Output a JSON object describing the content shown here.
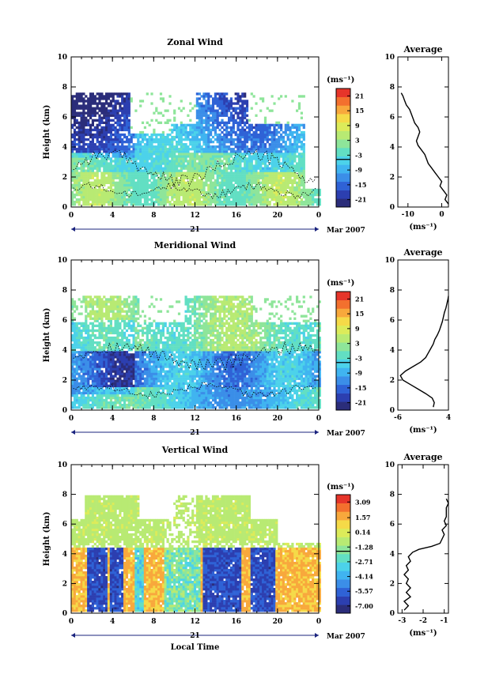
{
  "figure": {
    "date_label": "Mar 2007",
    "day_label": "21",
    "xlabel": "Local Time"
  },
  "colormap": [
    "#2b2d7a",
    "#2c3fb0",
    "#2f62d6",
    "#3b8ee8",
    "#40b4f0",
    "#4cd2ea",
    "#62dfc3",
    "#8ee59a",
    "#b8ea73",
    "#dceb5a",
    "#f5da48",
    "#f8a83c",
    "#f3702e",
    "#e6352a"
  ],
  "chart_data": [
    {
      "type": "heatmap",
      "title": "Zonal Wind",
      "xlabel": "",
      "ylabel": "Height (km)",
      "x_ticks": [
        "0",
        "4",
        "8",
        "12",
        "16",
        "20",
        "0"
      ],
      "xlim": [
        0,
        24
      ],
      "y_ticks": [
        "0",
        "2",
        "4",
        "6",
        "8",
        "10"
      ],
      "ylim": [
        0,
        10
      ],
      "colorbar": {
        "unit": "(ms⁻¹)",
        "ticks": [
          "21",
          "15",
          "9",
          "3",
          "-3",
          "-9",
          "-15",
          "-21"
        ],
        "range": [
          -24,
          24
        ],
        "zero_line": -3
      },
      "data_extent": {
        "x": [
          0,
          24
        ],
        "y": [
          0.1,
          7.6
        ]
      },
      "average": {
        "title": "Average",
        "xlabel": "(ms⁻¹)",
        "x_ticks": [
          "-10",
          "0"
        ],
        "xlim": [
          -13,
          2
        ],
        "y_ticks": [
          "0",
          "2",
          "4",
          "6",
          "8",
          "10"
        ],
        "ylim": [
          0,
          10
        ],
        "profile": [
          [
            2.0,
            0.2
          ],
          [
            1.0,
            0.5
          ],
          [
            1.5,
            0.8
          ],
          [
            0.5,
            1.1
          ],
          [
            -0.5,
            1.4
          ],
          [
            0.0,
            1.7
          ],
          [
            -1.0,
            2.0
          ],
          [
            -2.0,
            2.3
          ],
          [
            -3.0,
            2.6
          ],
          [
            -4.0,
            2.9
          ],
          [
            -4.5,
            3.2
          ],
          [
            -5.0,
            3.5
          ],
          [
            -6.0,
            3.8
          ],
          [
            -7.0,
            4.1
          ],
          [
            -7.5,
            4.4
          ],
          [
            -7.0,
            4.7
          ],
          [
            -6.5,
            5.0
          ],
          [
            -7.0,
            5.3
          ],
          [
            -8.0,
            5.6
          ],
          [
            -8.5,
            5.9
          ],
          [
            -9.0,
            6.2
          ],
          [
            -9.5,
            6.5
          ],
          [
            -10.5,
            6.8
          ],
          [
            -11.0,
            7.1
          ],
          [
            -11.5,
            7.4
          ],
          [
            -12.0,
            7.6
          ]
        ]
      }
    },
    {
      "type": "heatmap",
      "title": "Meridional Wind",
      "xlabel": "",
      "ylabel": "Height (km)",
      "x_ticks": [
        "0",
        "4",
        "8",
        "12",
        "16",
        "20",
        "0"
      ],
      "xlim": [
        0,
        24
      ],
      "y_ticks": [
        "0",
        "2",
        "4",
        "6",
        "8",
        "10"
      ],
      "ylim": [
        0,
        10
      ],
      "colorbar": {
        "unit": "(ms⁻¹)",
        "ticks": [
          "21",
          "15",
          "9",
          "3",
          "-3",
          "-9",
          "-15",
          "-21"
        ],
        "range": [
          -24,
          24
        ],
        "zero_line": -3
      },
      "data_extent": {
        "x": [
          0,
          24
        ],
        "y": [
          0.1,
          7.6
        ]
      },
      "average": {
        "title": "Average",
        "xlabel": "(ms⁻¹)",
        "x_ticks": [
          "-6",
          "4"
        ],
        "xlim": [
          -6,
          4
        ],
        "y_ticks": [
          "0",
          "2",
          "4",
          "6",
          "8",
          "10"
        ],
        "ylim": [
          0,
          10
        ],
        "profile": [
          [
            1.0,
            0.2
          ],
          [
            1.2,
            0.5
          ],
          [
            0.8,
            0.8
          ],
          [
            -0.5,
            1.1
          ],
          [
            -2.0,
            1.4
          ],
          [
            -3.5,
            1.7
          ],
          [
            -5.0,
            2.0
          ],
          [
            -5.5,
            2.3
          ],
          [
            -4.5,
            2.6
          ],
          [
            -3.0,
            2.9
          ],
          [
            -1.5,
            3.2
          ],
          [
            -0.5,
            3.5
          ],
          [
            0.0,
            3.8
          ],
          [
            0.5,
            4.1
          ],
          [
            1.0,
            4.4
          ],
          [
            1.3,
            4.7
          ],
          [
            1.8,
            5.0
          ],
          [
            2.2,
            5.3
          ],
          [
            2.5,
            5.6
          ],
          [
            2.8,
            5.9
          ],
          [
            3.0,
            6.2
          ],
          [
            3.2,
            6.5
          ],
          [
            3.5,
            6.8
          ],
          [
            3.7,
            7.1
          ],
          [
            3.9,
            7.4
          ],
          [
            4.0,
            7.6
          ]
        ]
      }
    },
    {
      "type": "heatmap",
      "title": "Vertical Wind",
      "xlabel": "Local Time",
      "ylabel": "Height (km)",
      "x_ticks": [
        "0",
        "4",
        "8",
        "12",
        "16",
        "20",
        "0"
      ],
      "xlim": [
        0,
        24
      ],
      "y_ticks": [
        "0",
        "2",
        "4",
        "6",
        "8",
        "10"
      ],
      "ylim": [
        0,
        10
      ],
      "colorbar": {
        "unit": "(ms⁻¹)",
        "ticks": [
          "3.09",
          "1.57",
          "0.14",
          "-1.28",
          "-2.71",
          "-4.14",
          "-5.57",
          "-7.00"
        ],
        "range": [
          -7.7,
          3.8
        ],
        "zero_line": -1.28
      },
      "data_extent": {
        "x": [
          0,
          24
        ],
        "y": [
          0.1,
          7.8
        ]
      },
      "average": {
        "title": "Average",
        "xlabel": "(ms⁻¹)",
        "x_ticks": [
          "-3",
          "-2",
          "-1"
        ],
        "xlim": [
          -3.2,
          -0.8
        ],
        "y_ticks": [
          "0",
          "2",
          "4",
          "6",
          "8",
          "10"
        ],
        "ylim": [
          0,
          10
        ],
        "profile": [
          [
            -2.9,
            0.2
          ],
          [
            -2.7,
            0.5
          ],
          [
            -2.9,
            0.8
          ],
          [
            -2.6,
            1.1
          ],
          [
            -2.8,
            1.4
          ],
          [
            -2.6,
            1.7
          ],
          [
            -2.8,
            2.0
          ],
          [
            -2.7,
            2.3
          ],
          [
            -2.9,
            2.6
          ],
          [
            -2.7,
            2.9
          ],
          [
            -2.8,
            3.2
          ],
          [
            -2.6,
            3.5
          ],
          [
            -2.7,
            3.8
          ],
          [
            -2.5,
            4.1
          ],
          [
            -2.2,
            4.3
          ],
          [
            -1.6,
            4.5
          ],
          [
            -1.2,
            4.7
          ],
          [
            -1.1,
            5.0
          ],
          [
            -1.0,
            5.3
          ],
          [
            -1.1,
            5.6
          ],
          [
            -0.9,
            5.9
          ],
          [
            -1.0,
            6.2
          ],
          [
            -0.9,
            6.5
          ],
          [
            -0.9,
            6.8
          ],
          [
            -0.9,
            7.1
          ],
          [
            -0.8,
            7.4
          ],
          [
            -0.9,
            7.7
          ]
        ]
      }
    }
  ]
}
